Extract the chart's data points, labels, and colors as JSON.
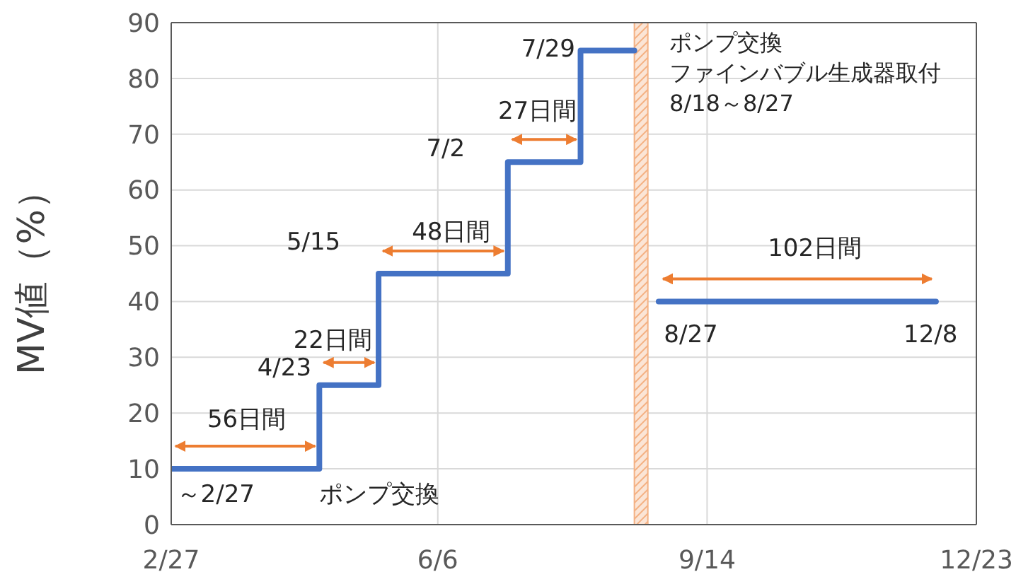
{
  "chart_data": {
    "type": "step",
    "ylabel": "MV値（%）",
    "xlim": [
      "--02-27",
      "--12-23"
    ],
    "xticks": [
      {
        "value": "--02-27",
        "label": "2/27"
      },
      {
        "value": "--06-06",
        "label": "6/6"
      },
      {
        "value": "--09-14",
        "label": "9/14"
      },
      {
        "value": "--12-23",
        "label": "12/23"
      }
    ],
    "ylim": [
      0,
      90
    ],
    "yticks": [
      0,
      10,
      20,
      30,
      40,
      50,
      60,
      70,
      80,
      90
    ],
    "series": [
      {
        "color": "#4472c4",
        "x": [
          "--02-27",
          "--04-23",
          "--05-15",
          "--07-02",
          "--07-29",
          "--08-18"
        ],
        "values": [
          10,
          25,
          45,
          65,
          85,
          85
        ]
      },
      {
        "color": "#4472c4",
        "x": [
          "--08-27",
          "--12-08"
        ],
        "values": [
          40,
          40
        ]
      }
    ],
    "bands": [
      {
        "axis": "x",
        "from": "--08-18",
        "to": "--08-23",
        "color": "#f4b183"
      }
    ],
    "annotations": [
      "～2/27",
      "ポンプ交換",
      "56日間",
      "4/23",
      "22日間",
      {
        "text": "5/15",
        "x": "--05-15",
        "y": 45
      },
      "48日間",
      {
        "text": "7/2",
        "x": "--07-02",
        "y": 65
      },
      "27日間",
      "7/29",
      "102日間",
      "8/27",
      "12/8",
      "ポンプ交換",
      "ファインバブル生成器取付",
      "8/18～8/27"
    ],
    "grid": true
  }
}
